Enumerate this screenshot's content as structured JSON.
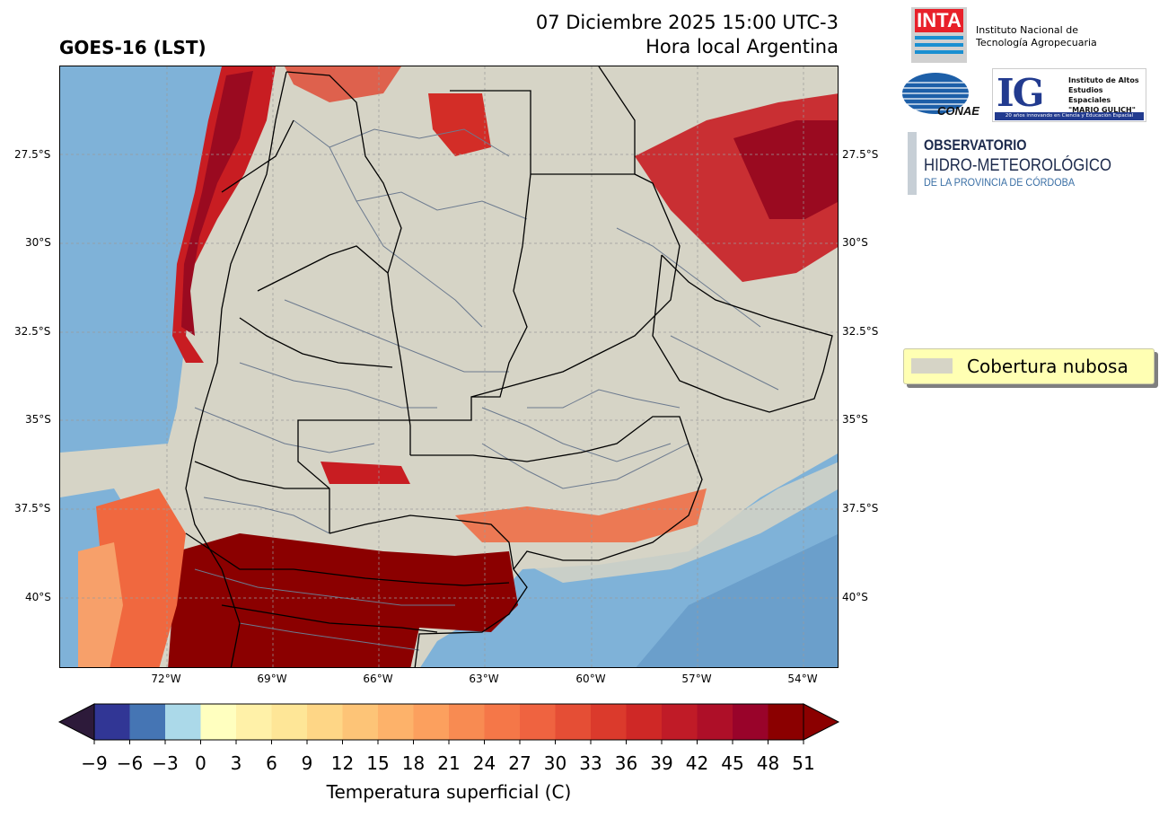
{
  "header": {
    "title_left": "GOES-16 (LST)",
    "datetime": "07 Diciembre 2025 15:00 UTC-3",
    "local_time_label": "Hora local Argentina"
  },
  "map": {
    "lat_labels": [
      "27.5°S",
      "30°S",
      "32.5°S",
      "35°S",
      "37.5°S",
      "40°S"
    ],
    "lon_labels": [
      "72°W",
      "69°W",
      "66°W",
      "63°W",
      "60°W",
      "57°W",
      "54°W"
    ],
    "colors": {
      "cloud": "#d6d4c6",
      "ocean": "#7fb2d8",
      "hot": "#8b0000",
      "warm": "#e0442e",
      "mild": "#f7834e",
      "border": "#6c7a8f",
      "province_border": "#000000"
    }
  },
  "legend": {
    "label": "Cobertura nubosa",
    "color": "#d6d4c6"
  },
  "colorbar": {
    "ticks": [
      "−9",
      "−6",
      "−3",
      "0",
      "3",
      "6",
      "9",
      "12",
      "15",
      "18",
      "21",
      "24",
      "27",
      "30",
      "33",
      "36",
      "39",
      "42",
      "45",
      "48",
      "51"
    ],
    "colors": [
      "#313695",
      "#4575b4",
      "#abd9e9",
      "#ffffbf",
      "#fff1a8",
      "#fee697",
      "#fed686",
      "#fdc477",
      "#fdb26a",
      "#fca05e",
      "#f88b52",
      "#f57748",
      "#ef6340",
      "#e54e35",
      "#db3a2c",
      "#cf2826",
      "#c01b27",
      "#ae0f28",
      "#99032a",
      "#8b0000"
    ],
    "under_color": "#2d1a3a",
    "over_color": "#8b0000",
    "label": "Temperatura superficial (C)"
  },
  "logos": {
    "inta_word": "INTA",
    "inta_text_1": "Instituto Nacional de",
    "inta_text_2": "Tecnología Agropecuaria",
    "conae_word": "CONAE",
    "ig_letters": "IG",
    "ig_text_1": "Instituto de Altos",
    "ig_text_2": "Estudios Espaciales",
    "ig_text_3": "\"MARIO GULICH\"",
    "ig_footer": "20 años innovando en Ciencia y Educación Espacial",
    "obs_1": "OBSERVATORIO",
    "obs_2": "HIDRO-METEOROLÓGICO",
    "obs_3": "DE LA PROVINCIA DE CÓRDOBA"
  }
}
